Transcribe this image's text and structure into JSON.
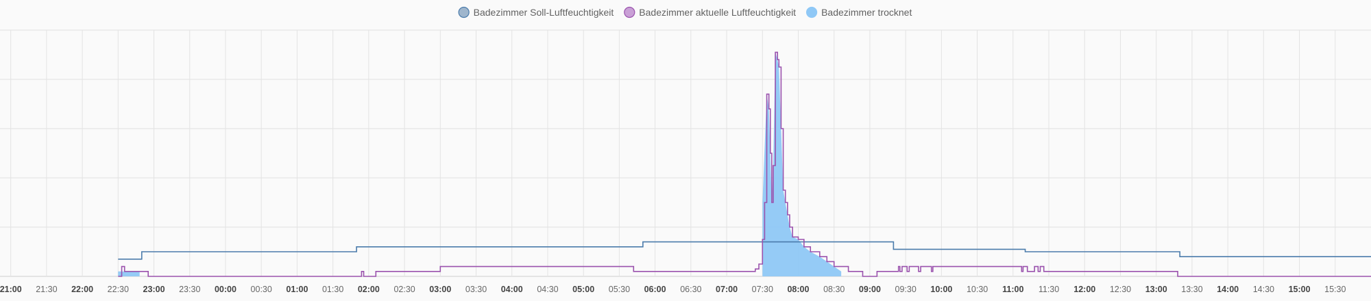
{
  "chart_data": {
    "type": "line",
    "title": "",
    "xlabel": "",
    "ylabel": "",
    "grid": true,
    "legend_placement": "top-center",
    "x_ticks": [
      {
        "label": "21:00",
        "bold": true
      },
      {
        "label": "21:30",
        "bold": false
      },
      {
        "label": "22:00",
        "bold": true
      },
      {
        "label": "22:30",
        "bold": false
      },
      {
        "label": "23:00",
        "bold": true
      },
      {
        "label": "23:30",
        "bold": false
      },
      {
        "label": "00:00",
        "bold": true
      },
      {
        "label": "00:30",
        "bold": false
      },
      {
        "label": "01:00",
        "bold": true
      },
      {
        "label": "01:30",
        "bold": false
      },
      {
        "label": "02:00",
        "bold": true
      },
      {
        "label": "02:30",
        "bold": false
      },
      {
        "label": "03:00",
        "bold": true
      },
      {
        "label": "03:30",
        "bold": false
      },
      {
        "label": "04:00",
        "bold": true
      },
      {
        "label": "04:30",
        "bold": false
      },
      {
        "label": "05:00",
        "bold": true
      },
      {
        "label": "05:30",
        "bold": false
      },
      {
        "label": "06:00",
        "bold": true
      },
      {
        "label": "06:30",
        "bold": false
      },
      {
        "label": "07:00",
        "bold": true
      },
      {
        "label": "07:30",
        "bold": false
      },
      {
        "label": "08:00",
        "bold": true
      },
      {
        "label": "08:30",
        "bold": false
      },
      {
        "label": "09:00",
        "bold": true
      },
      {
        "label": "09:30",
        "bold": false
      },
      {
        "label": "10:00",
        "bold": true
      },
      {
        "label": "10:30",
        "bold": false
      },
      {
        "label": "11:00",
        "bold": true
      },
      {
        "label": "11:30",
        "bold": false
      },
      {
        "label": "12:00",
        "bold": true
      },
      {
        "label": "12:30",
        "bold": false
      },
      {
        "label": "13:00",
        "bold": true
      },
      {
        "label": "13:30",
        "bold": false
      },
      {
        "label": "14:00",
        "bold": true
      },
      {
        "label": "14:30",
        "bold": false
      },
      {
        "label": "15:00",
        "bold": true
      },
      {
        "label": "15:30",
        "bold": false
      }
    ],
    "x_unit": "hours since 21:00",
    "xlim": [
      -0.15,
      19.0
    ],
    "ylim": [
      0,
      100
    ],
    "series": [
      {
        "name": "Badezimmer Soll-Luftfeuchtigkeit",
        "color": "#4a7bab",
        "fill": "#9fb6cd",
        "style": "step",
        "points": [
          [
            1.5,
            7
          ],
          [
            1.83,
            7
          ],
          [
            1.83,
            10
          ],
          [
            4.83,
            10
          ],
          [
            4.83,
            12
          ],
          [
            8.83,
            12
          ],
          [
            8.83,
            14
          ],
          [
            12.33,
            14
          ],
          [
            12.33,
            11
          ],
          [
            14.17,
            11
          ],
          [
            14.17,
            10
          ],
          [
            16.33,
            10
          ],
          [
            16.33,
            8
          ],
          [
            19.0,
            8
          ]
        ]
      },
      {
        "name": "Badezimmer aktuelle Luftfeuchtigkeit",
        "color": "#9a52ad",
        "fill": "#c9a0d6",
        "style": "step",
        "points": [
          [
            1.5,
            0
          ],
          [
            1.55,
            0
          ],
          [
            1.55,
            4
          ],
          [
            1.59,
            4
          ],
          [
            1.59,
            2
          ],
          [
            1.92,
            2
          ],
          [
            1.92,
            0
          ],
          [
            4.9,
            0
          ],
          [
            4.9,
            2
          ],
          [
            4.93,
            2
          ],
          [
            4.93,
            0
          ],
          [
            5.1,
            0
          ],
          [
            5.1,
            2
          ],
          [
            6.0,
            2
          ],
          [
            6.0,
            4
          ],
          [
            8.7,
            4
          ],
          [
            8.7,
            2
          ],
          [
            10.4,
            2
          ],
          [
            10.4,
            3
          ],
          [
            10.45,
            3
          ],
          [
            10.45,
            5
          ],
          [
            10.5,
            5
          ],
          [
            10.5,
            15
          ],
          [
            10.53,
            15
          ],
          [
            10.53,
            30
          ],
          [
            10.56,
            30
          ],
          [
            10.56,
            74
          ],
          [
            10.59,
            74
          ],
          [
            10.59,
            68
          ],
          [
            10.61,
            68
          ],
          [
            10.61,
            50
          ],
          [
            10.63,
            50
          ],
          [
            10.63,
            30
          ],
          [
            10.65,
            30
          ],
          [
            10.65,
            45
          ],
          [
            10.68,
            45
          ],
          [
            10.68,
            91
          ],
          [
            10.71,
            91
          ],
          [
            10.71,
            88
          ],
          [
            10.73,
            88
          ],
          [
            10.73,
            85
          ],
          [
            10.76,
            85
          ],
          [
            10.76,
            60
          ],
          [
            10.79,
            60
          ],
          [
            10.79,
            35
          ],
          [
            10.82,
            35
          ],
          [
            10.82,
            30
          ],
          [
            10.85,
            30
          ],
          [
            10.85,
            25
          ],
          [
            10.88,
            25
          ],
          [
            10.88,
            20
          ],
          [
            10.92,
            20
          ],
          [
            10.92,
            16
          ],
          [
            11.0,
            16
          ],
          [
            11.0,
            15
          ],
          [
            11.08,
            15
          ],
          [
            11.08,
            12
          ],
          [
            11.17,
            12
          ],
          [
            11.17,
            10
          ],
          [
            11.3,
            10
          ],
          [
            11.3,
            8
          ],
          [
            11.4,
            8
          ],
          [
            11.4,
            6
          ],
          [
            11.5,
            6
          ],
          [
            11.5,
            4
          ],
          [
            11.7,
            4
          ],
          [
            11.7,
            2
          ],
          [
            11.9,
            2
          ],
          [
            11.9,
            0
          ],
          [
            12.1,
            0
          ],
          [
            12.1,
            2
          ],
          [
            12.4,
            2
          ],
          [
            12.4,
            4
          ],
          [
            12.42,
            4
          ],
          [
            12.42,
            2
          ],
          [
            12.45,
            2
          ],
          [
            12.45,
            4
          ],
          [
            12.52,
            4
          ],
          [
            12.52,
            2
          ],
          [
            12.55,
            2
          ],
          [
            12.55,
            4
          ],
          [
            12.68,
            4
          ],
          [
            12.68,
            2
          ],
          [
            12.71,
            2
          ],
          [
            12.71,
            4
          ],
          [
            12.86,
            4
          ],
          [
            12.86,
            2
          ],
          [
            12.88,
            2
          ],
          [
            12.88,
            4
          ],
          [
            14.12,
            4
          ],
          [
            14.12,
            2
          ],
          [
            14.14,
            2
          ],
          [
            14.14,
            4
          ],
          [
            14.2,
            4
          ],
          [
            14.2,
            2
          ],
          [
            14.3,
            2
          ],
          [
            14.3,
            4
          ],
          [
            14.35,
            4
          ],
          [
            14.35,
            2
          ],
          [
            14.38,
            2
          ],
          [
            14.38,
            4
          ],
          [
            14.43,
            4
          ],
          [
            14.43,
            2
          ],
          [
            16.3,
            2
          ],
          [
            16.3,
            0
          ],
          [
            19.0,
            0
          ]
        ]
      },
      {
        "name": "Badezimmer trocknet",
        "color": "#8fc8f6",
        "fill": "#8fc8f6",
        "style": "area",
        "segments": [
          [
            [
              1.5,
              2
            ],
            [
              1.8,
              2
            ]
          ],
          [
            [
              10.5,
              30
            ],
            [
              10.56,
              74
            ],
            [
              10.59,
              68
            ],
            [
              10.61,
              50
            ],
            [
              10.63,
              30
            ],
            [
              10.65,
              45
            ],
            [
              10.68,
              91
            ],
            [
              10.71,
              88
            ],
            [
              10.73,
              85
            ],
            [
              10.76,
              60
            ],
            [
              10.79,
              35
            ],
            [
              10.82,
              30
            ],
            [
              10.85,
              25
            ],
            [
              10.88,
              20
            ],
            [
              10.92,
              16
            ],
            [
              11.0,
              15
            ],
            [
              11.08,
              12
            ],
            [
              11.17,
              10
            ],
            [
              11.3,
              8
            ],
            [
              11.4,
              6
            ],
            [
              11.5,
              4
            ],
            [
              11.6,
              2
            ]
          ]
        ]
      }
    ]
  }
}
